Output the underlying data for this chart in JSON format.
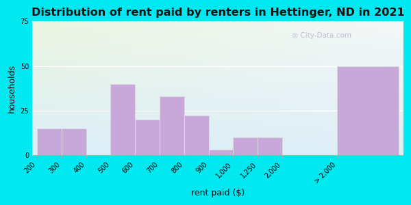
{
  "title": "Distribution of rent paid by renters in Hettinger, ND in 2021",
  "xlabel": "rent paid ($)",
  "ylabel": "households",
  "bar_labels": [
    "200",
    "300",
    "400",
    "500",
    "600",
    "700",
    "800",
    "900",
    "1,000",
    "1,250",
    "2,000",
    "> 2,000"
  ],
  "bar_values": [
    15,
    15,
    0,
    40,
    20,
    33,
    22,
    3,
    10,
    10,
    0,
    50
  ],
  "bar_color": "#c8a8d8",
  "bar_edge_color": "#e0e0e0",
  "bg_outer": "#00e8f0",
  "bg_plot_topleft": "#eaf5e0",
  "bg_plot_topright": "#f5f8f8",
  "bg_plot_bottom": "#ddeef8",
  "yticks": [
    0,
    25,
    50,
    75
  ],
  "ylim": [
    0,
    75
  ],
  "title_fontsize": 11.5,
  "axis_label_fontsize": 9,
  "tick_fontsize": 7,
  "watermark_text": "City-Data.com",
  "watermark_icon": "◎"
}
